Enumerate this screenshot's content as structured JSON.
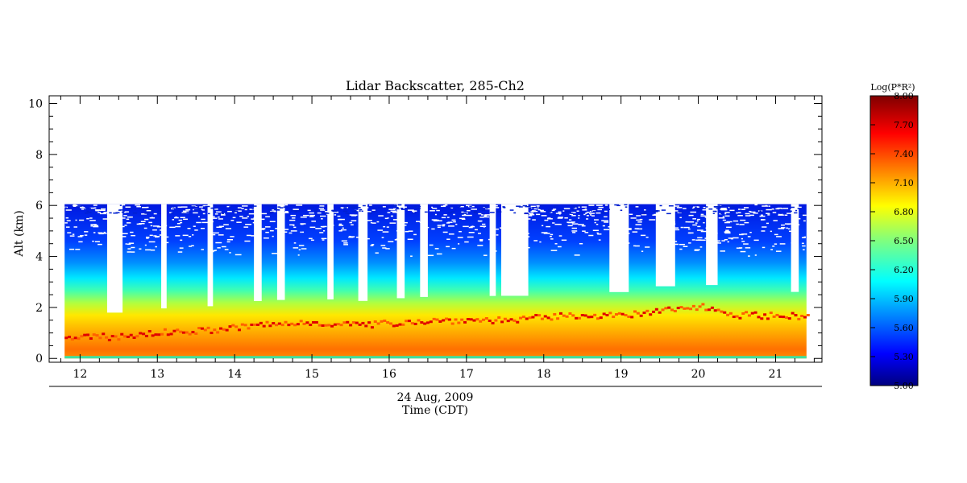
{
  "chart_data": {
    "type": "heatmap",
    "title": "Lidar Backscatter, 285-Ch2",
    "xlabel": "Time (CDT)",
    "date_label": "24 Aug, 2009",
    "ylabel": "Alt (km)",
    "xlim": [
      11.6,
      21.6
    ],
    "ylim": [
      -0.15,
      10.3
    ],
    "x_ticks": [
      12,
      13,
      14,
      15,
      16,
      17,
      18,
      19,
      20,
      21
    ],
    "y_ticks": [
      0,
      2,
      4,
      6,
      8,
      10
    ],
    "data_extent": {
      "time": [
        11.8,
        21.4
      ],
      "altitude": [
        0.0,
        6.05
      ]
    },
    "colorbar": {
      "label": "Log(P*R²)",
      "range": [
        5.0,
        8.0
      ],
      "ticks": [
        "8.00",
        "7.70",
        "7.40",
        "7.10",
        "6.80",
        "6.50",
        "6.20",
        "5.90",
        "5.60",
        "5.30",
        "5.00"
      ],
      "colormap": "jet"
    },
    "boundary_layer_top_km": [
      [
        11.8,
        0.85
      ],
      [
        12.5,
        0.9
      ],
      [
        13.0,
        1.05
      ],
      [
        13.7,
        1.15
      ],
      [
        14.3,
        1.35
      ],
      [
        15.0,
        1.45
      ],
      [
        15.7,
        1.35
      ],
      [
        16.3,
        1.5
      ],
      [
        17.0,
        1.55
      ],
      [
        17.6,
        1.55
      ],
      [
        18.0,
        1.65
      ],
      [
        18.5,
        1.75
      ],
      [
        19.0,
        1.7
      ],
      [
        19.5,
        1.9
      ],
      [
        20.0,
        2.1
      ],
      [
        20.5,
        1.75
      ],
      [
        21.4,
        1.7
      ]
    ],
    "clear_sky_gaps_hours": [
      [
        12.35,
        12.55
      ],
      [
        13.05,
        13.12
      ],
      [
        13.65,
        13.72
      ],
      [
        14.25,
        14.35
      ],
      [
        14.55,
        14.65
      ],
      [
        15.2,
        15.28
      ],
      [
        15.6,
        15.72
      ],
      [
        16.1,
        16.2
      ],
      [
        16.4,
        16.5
      ],
      [
        17.3,
        17.38
      ],
      [
        17.45,
        17.8
      ],
      [
        18.85,
        19.1
      ],
      [
        19.45,
        19.7
      ],
      [
        20.1,
        20.25
      ],
      [
        21.2,
        21.3
      ]
    ]
  }
}
